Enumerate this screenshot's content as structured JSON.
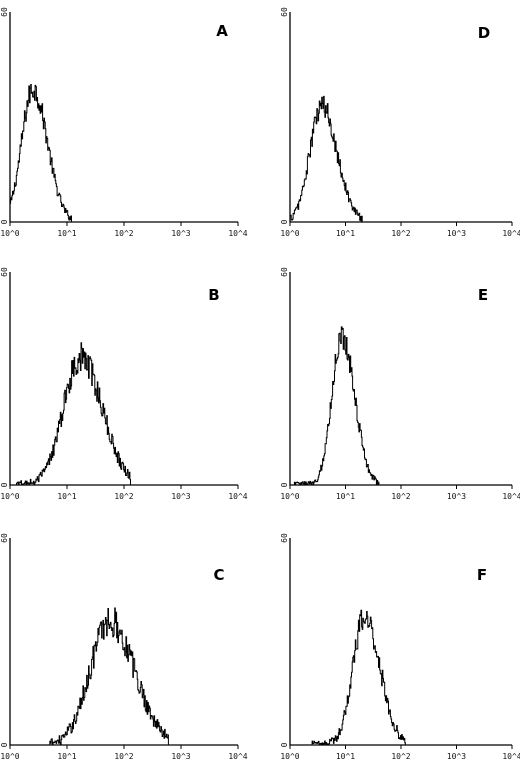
{
  "chart_data": [
    {
      "type": "histogram",
      "panel": "A",
      "x_scale": "log",
      "xlim": [
        1,
        10000
      ],
      "ylim": [
        0,
        60
      ],
      "x_ticks": [
        "10^0",
        "10^1",
        "10^2",
        "10^3",
        "10^4"
      ],
      "y_ticks": [
        "0",
        "60"
      ],
      "peak": {
        "x": 2.5,
        "y": 38
      },
      "spread_decades": 0.22,
      "noise": 5,
      "x_range": [
        1,
        12
      ]
    },
    {
      "type": "histogram",
      "panel": "B",
      "x_scale": "log",
      "xlim": [
        1,
        10000
      ],
      "ylim": [
        0,
        60
      ],
      "x_ticks": [
        "10^0",
        "10^1",
        "10^2",
        "10^3",
        "10^4"
      ],
      "y_ticks": [
        "0",
        "60"
      ],
      "peak": {
        "x": 17,
        "y": 36
      },
      "spread_decades": 0.33,
      "noise": 6,
      "x_range": [
        1.3,
        130
      ]
    },
    {
      "type": "histogram",
      "panel": "C",
      "x_scale": "log",
      "xlim": [
        1,
        10000
      ],
      "ylim": [
        0,
        60
      ],
      "x_ticks": [
        "10^0",
        "10^1",
        "10^2",
        "10^3",
        "10^4"
      ],
      "y_ticks": [
        "0",
        "60"
      ],
      "peak": {
        "x": 55,
        "y": 36
      },
      "spread_decades": 0.38,
      "noise": 7,
      "x_range": [
        5,
        600
      ]
    },
    {
      "type": "histogram",
      "panel": "D",
      "x_scale": "log",
      "xlim": [
        1,
        10000
      ],
      "ylim": [
        0,
        60
      ],
      "x_ticks": [
        "10^0",
        "10^1",
        "10^2",
        "10^3",
        "10^4"
      ],
      "y_ticks": [
        "0",
        "60"
      ],
      "peak": {
        "x": 3.7,
        "y": 33
      },
      "spread_decades": 0.24,
      "noise": 5,
      "x_range": [
        1,
        20
      ]
    },
    {
      "type": "histogram",
      "panel": "E",
      "x_scale": "log",
      "xlim": [
        1,
        10000
      ],
      "ylim": [
        0,
        60
      ],
      "x_ticks": [
        "10^0",
        "10^1",
        "10^2",
        "10^3",
        "10^4"
      ],
      "y_ticks": [
        "0",
        "60"
      ],
      "peak": {
        "x": 8.5,
        "y": 42
      },
      "spread_decades": 0.2,
      "noise": 5,
      "x_range": [
        1.2,
        40
      ]
    },
    {
      "type": "histogram",
      "panel": "F",
      "x_scale": "log",
      "xlim": [
        1,
        10000
      ],
      "ylim": [
        0,
        60
      ],
      "x_ticks": [
        "10^0",
        "10^1",
        "10^2",
        "10^3",
        "10^4"
      ],
      "y_ticks": [
        "0",
        "60"
      ],
      "peak": {
        "x": 22,
        "y": 37
      },
      "spread_decades": 0.24,
      "noise": 6,
      "x_range": [
        2.5,
        120
      ]
    }
  ]
}
